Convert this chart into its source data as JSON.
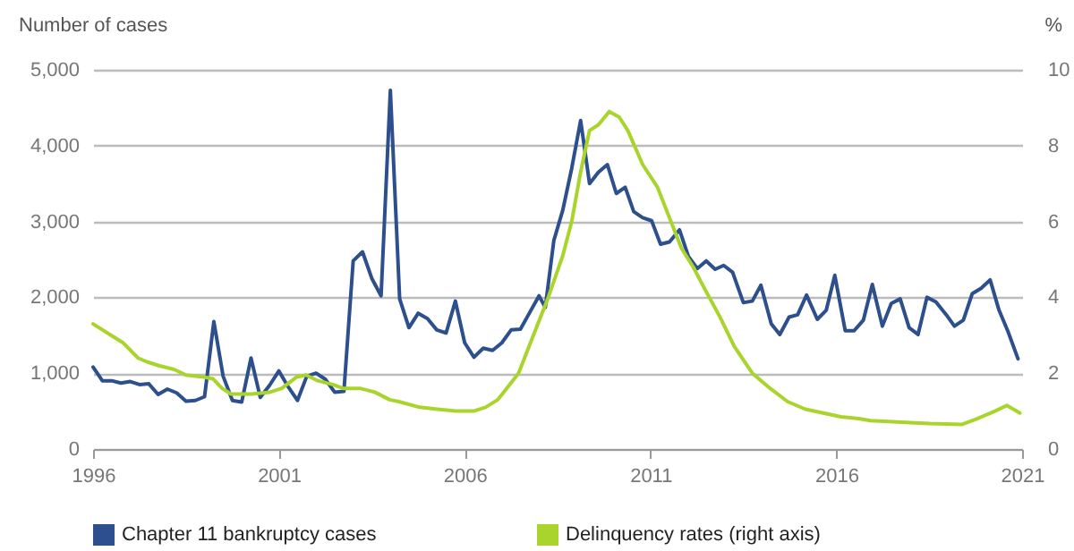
{
  "chart_data": {
    "type": "line",
    "ylabel": "Number of cases",
    "y2label": "%",
    "xlim": [
      1996,
      2021
    ],
    "xticks": [
      1996,
      2001,
      2006,
      2011,
      2016,
      2021
    ],
    "ylim": [
      0,
      5000
    ],
    "yticks": [
      0,
      {
        "value": 1000,
        "label": "1,000"
      },
      {
        "value": 2000,
        "label": "2,000"
      },
      {
        "value": 3000,
        "label": "3,000"
      },
      {
        "value": 4000,
        "label": "4,000"
      },
      {
        "value": 5000,
        "label": "5,000"
      }
    ],
    "y2lim": [
      0,
      10
    ],
    "y2ticks": [
      0,
      2,
      4,
      6,
      8,
      10
    ],
    "grid": "y",
    "legend": "bottom left",
    "line_style": "solid",
    "series": [
      {
        "name": "Chapter 11 bankruptcy cases",
        "color": "#2d4f8e",
        "x": [
          1996,
          1996.25,
          1996.5,
          1996.75,
          1997,
          1997.25,
          1997.5,
          1997.75,
          1998,
          1998.25,
          1998.5,
          1998.75,
          1999,
          1999.25,
          1999.5,
          1999.75,
          2000,
          2000.25,
          2000.5,
          2000.75,
          2001,
          2001.25,
          2001.5,
          2001.75,
          2002,
          2002.25,
          2002.5,
          2002.75,
          2003,
          2003.25,
          2003.5,
          2003.75,
          2004,
          2004.25,
          2004.5,
          2004.75,
          2005,
          2005.25,
          2005.5,
          2005.75,
          2006,
          2006.25,
          2006.5,
          2006.75,
          2007,
          2007.25,
          2007.5,
          2007.75,
          2008,
          2008.17,
          2008.4,
          2008.64,
          2008.88,
          2009.12,
          2009.36,
          2009.6,
          2009.84,
          2010.08,
          2010.32,
          2010.55,
          2010.79,
          2011.03,
          2011.27,
          2011.51,
          2011.78,
          2012.02,
          2012.26,
          2012.5,
          2012.74,
          2012.97,
          2013.21,
          2013.5,
          2013.74,
          2013.97,
          2014.25,
          2014.48,
          2014.73,
          2014.96,
          2015.2,
          2015.49,
          2015.73,
          2015.96,
          2016.24,
          2016.48,
          2016.73,
          2016.97,
          2017.24,
          2017.48,
          2017.72,
          2017.96,
          2018.2,
          2018.44,
          2018.68,
          2018.96,
          2019.18,
          2019.42,
          2019.66,
          2019.9,
          2020.14,
          2020.38,
          2020.62,
          2020.89
        ],
        "values": [
          1080,
          900,
          900,
          870,
          890,
          850,
          860,
          720,
          790,
          740,
          630,
          640,
          690,
          1680,
          960,
          640,
          620,
          1200,
          680,
          840,
          1030,
          820,
          640,
          960,
          1000,
          920,
          750,
          760,
          2480,
          2600,
          2250,
          2020,
          4730,
          1980,
          1600,
          1790,
          1720,
          1570,
          1530,
          1950,
          1400,
          1210,
          1330,
          1300,
          1400,
          1570,
          1580,
          1800,
          2020,
          1870,
          2750,
          3150,
          3700,
          4330,
          3500,
          3650,
          3750,
          3370,
          3450,
          3130,
          3050,
          3010,
          2700,
          2730,
          2890,
          2540,
          2380,
          2480,
          2370,
          2420,
          2330,
          1930,
          1950,
          2160,
          1650,
          1510,
          1740,
          1770,
          2030,
          1710,
          1830,
          2290,
          1560,
          1560,
          1700,
          2170,
          1620,
          1920,
          1980,
          1600,
          1510,
          2000,
          1940,
          1770,
          1620,
          1700,
          2050,
          2120,
          2230,
          1830,
          1550,
          1190
        ]
      },
      {
        "name": "Delinquency rates (right axis)",
        "color": "#a9d42c",
        "axis": "y2",
        "x": [
          1996,
          1996.48,
          1996.81,
          1997.21,
          1997.45,
          1997.77,
          1998.18,
          1998.5,
          1998.98,
          1999.23,
          1999.47,
          1999.71,
          2000.27,
          2000.76,
          2001.08,
          2001.48,
          2001.73,
          2002.05,
          2002.45,
          2002.73,
          2003.18,
          2003.58,
          2003.98,
          2004.23,
          2004.79,
          2005.27,
          2005.76,
          2006.24,
          2006.56,
          2006.89,
          2007.05,
          2007.45,
          2007.85,
          2008.25,
          2008.64,
          2008.88,
          2009.12,
          2009.36,
          2009.6,
          2009.89,
          2010.16,
          2010.39,
          2010.79,
          2011.19,
          2011.51,
          2011.83,
          2012.15,
          2012.47,
          2012.86,
          2013.26,
          2013.74,
          2014.22,
          2014.69,
          2015.17,
          2015.65,
          2016.13,
          2016.61,
          2016.92,
          2017.88,
          2018.52,
          2019.39,
          2019.79,
          2020.27,
          2020.59,
          2020.94
        ],
        "values": [
          3.3,
          3.0,
          2.8,
          2.4,
          2.3,
          2.2,
          2.1,
          1.95,
          1.9,
          1.85,
          1.6,
          1.45,
          1.45,
          1.5,
          1.6,
          1.9,
          1.95,
          1.8,
          1.7,
          1.6,
          1.6,
          1.5,
          1.3,
          1.25,
          1.1,
          1.05,
          1.0,
          1.0,
          1.1,
          1.3,
          1.5,
          2.0,
          3.0,
          4.0,
          5.1,
          6.0,
          7.3,
          8.4,
          8.55,
          8.9,
          8.75,
          8.4,
          7.5,
          6.9,
          6.1,
          5.3,
          4.8,
          4.2,
          3.5,
          2.7,
          2.0,
          1.6,
          1.25,
          1.05,
          0.95,
          0.85,
          0.8,
          0.75,
          0.7,
          0.67,
          0.65,
          0.8,
          1.0,
          1.15,
          0.95
        ]
      }
    ]
  }
}
